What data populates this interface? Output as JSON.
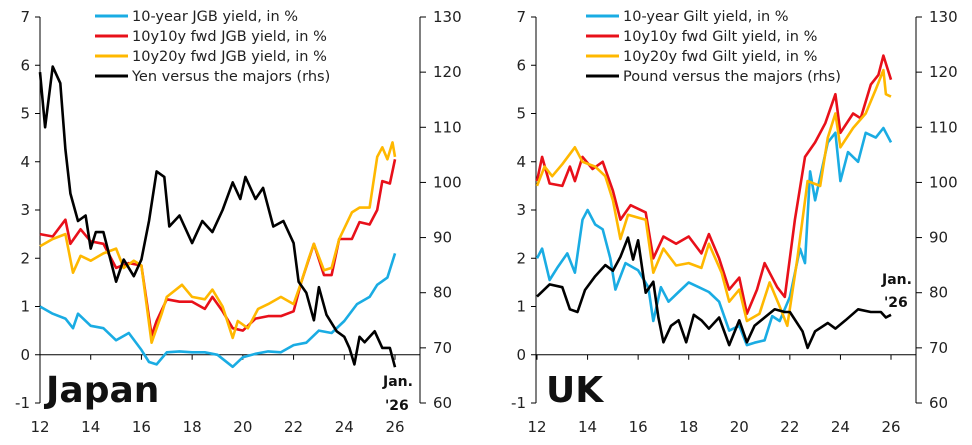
{
  "chart_data": [
    {
      "type": "line",
      "title": "Japan",
      "annotation": [
        "Jan.",
        "'26"
      ],
      "x_ticks": [
        "12",
        "14",
        "16",
        "18",
        "20",
        "22",
        "24",
        "26"
      ],
      "xlim": [
        2012,
        2026
      ],
      "ylim_left": [
        -1,
        7
      ],
      "ylim_right": [
        60,
        130
      ],
      "y_ticks_left": [
        "-1",
        "0",
        "1",
        "2",
        "3",
        "4",
        "5",
        "6",
        "7"
      ],
      "y_ticks_right": [
        "60",
        "70",
        "80",
        "90",
        "100",
        "110",
        "120",
        "130"
      ],
      "legend_placement": "top",
      "series": [
        {
          "name": "10-year JGB yield, in %",
          "color": "#1AACE3",
          "axis": "left",
          "x": [
            2012,
            2012.5,
            2013,
            2013.3,
            2013.5,
            2014,
            2014.5,
            2015,
            2015.5,
            2016,
            2016.3,
            2016.6,
            2017,
            2017.5,
            2018,
            2018.5,
            2019,
            2019.6,
            2020,
            2020.5,
            2021,
            2021.5,
            2022,
            2022.5,
            2023,
            2023.5,
            2024,
            2024.5,
            2025,
            2025.3,
            2025.7,
            2026
          ],
          "y": [
            1.0,
            0.85,
            0.75,
            0.55,
            0.85,
            0.6,
            0.55,
            0.3,
            0.45,
            0.1,
            -0.15,
            -0.2,
            0.05,
            0.07,
            0.05,
            0.05,
            0.0,
            -0.25,
            -0.05,
            0.02,
            0.07,
            0.05,
            0.2,
            0.25,
            0.5,
            0.45,
            0.7,
            1.05,
            1.2,
            1.45,
            1.6,
            2.1
          ]
        },
        {
          "name": "10y10y fwd JGB yield, in %",
          "color": "#E8101A",
          "axis": "left",
          "x": [
            2012,
            2012.5,
            2013,
            2013.2,
            2013.6,
            2014,
            2014.5,
            2015,
            2015.5,
            2016,
            2016.4,
            2016.6,
            2017,
            2017.5,
            2018,
            2018.5,
            2018.8,
            2019.2,
            2019.6,
            2020,
            2020.5,
            2021,
            2021.5,
            2022,
            2022.3,
            2022.8,
            2023.2,
            2023.5,
            2023.8,
            2024.3,
            2024.6,
            2025,
            2025.3,
            2025.5,
            2025.8,
            2026
          ],
          "y": [
            2.5,
            2.45,
            2.8,
            2.3,
            2.6,
            2.35,
            2.3,
            1.8,
            1.9,
            1.85,
            0.4,
            0.7,
            1.15,
            1.1,
            1.1,
            0.95,
            1.2,
            0.9,
            0.55,
            0.5,
            0.75,
            0.8,
            0.8,
            0.9,
            1.5,
            2.3,
            1.65,
            1.65,
            2.4,
            2.4,
            2.75,
            2.7,
            3.0,
            3.6,
            3.55,
            4.05
          ]
        },
        {
          "name": "10y20y fwd JGB yield, in %",
          "color": "#FFB800",
          "axis": "left",
          "x": [
            2012,
            2012.5,
            2013,
            2013.3,
            2013.6,
            2014,
            2014.5,
            2015,
            2015.3,
            2015.7,
            2016,
            2016.4,
            2016.8,
            2017,
            2017.6,
            2018,
            2018.5,
            2018.8,
            2019.2,
            2019.6,
            2019.8,
            2020.2,
            2020.6,
            2021,
            2021.5,
            2022,
            2022.3,
            2022.6,
            2022.8,
            2023.2,
            2023.5,
            2023.8,
            2024.3,
            2024.6,
            2025,
            2025.3,
            2025.5,
            2025.7,
            2025.9,
            2026
          ],
          "y": [
            2.25,
            2.4,
            2.5,
            1.7,
            2.05,
            1.95,
            2.1,
            2.2,
            1.8,
            1.95,
            1.85,
            0.25,
            0.85,
            1.2,
            1.45,
            1.2,
            1.15,
            1.35,
            1.0,
            0.35,
            0.7,
            0.55,
            0.95,
            1.05,
            1.2,
            1.05,
            1.5,
            2.0,
            2.3,
            1.75,
            1.8,
            2.4,
            2.95,
            3.05,
            3.05,
            4.1,
            4.3,
            4.05,
            4.4,
            4.1
          ]
        },
        {
          "name": "Yen versus the majors (rhs)",
          "color": "#000000",
          "axis": "right",
          "x": [
            2012,
            2012.2,
            2012.5,
            2012.8,
            2013,
            2013.2,
            2013.5,
            2013.8,
            2014,
            2014.2,
            2014.5,
            2015,
            2015.3,
            2015.7,
            2016,
            2016.3,
            2016.6,
            2016.9,
            2017.1,
            2017.5,
            2018,
            2018.4,
            2018.8,
            2019.2,
            2019.6,
            2019.9,
            2020.1,
            2020.5,
            2020.8,
            2021.2,
            2021.6,
            2022,
            2022.2,
            2022.5,
            2022.8,
            2023,
            2023.3,
            2023.7,
            2024,
            2024.2,
            2024.4,
            2024.6,
            2024.8,
            2025.2,
            2025.5,
            2025.8,
            2026
          ],
          "y": [
            120,
            110,
            121,
            118,
            106,
            98,
            93,
            94,
            88,
            91,
            91,
            82,
            86,
            83,
            86,
            93,
            102,
            101,
            92,
            94,
            89,
            93,
            91,
            95,
            100,
            97,
            101,
            97,
            99,
            92,
            93,
            89,
            82,
            80,
            75,
            81,
            76,
            73,
            72,
            70,
            67,
            72,
            71,
            73,
            70,
            70,
            66.5
          ]
        }
      ]
    },
    {
      "type": "line",
      "title": "UK",
      "annotation": [
        "Jan.",
        "'26"
      ],
      "x_ticks": [
        "12",
        "14",
        "16",
        "18",
        "20",
        "22",
        "24",
        "26"
      ],
      "xlim": [
        2012,
        2026
      ],
      "ylim_left": [
        -1,
        7
      ],
      "ylim_right": [
        60,
        130
      ],
      "y_ticks_left": [
        "-1",
        "0",
        "1",
        "2",
        "3",
        "4",
        "5",
        "6",
        "7"
      ],
      "y_ticks_right": [
        "60",
        "70",
        "80",
        "90",
        "100",
        "110",
        "120",
        "130"
      ],
      "legend_placement": "top",
      "series": [
        {
          "name": "10-year Gilt yield, in %",
          "color": "#1AACE3",
          "axis": "left",
          "x": [
            2012,
            2012.2,
            2012.5,
            2012.8,
            2013.2,
            2013.5,
            2013.8,
            2014,
            2014.3,
            2014.6,
            2014.9,
            2015.1,
            2015.5,
            2016,
            2016.4,
            2016.6,
            2016.9,
            2017.2,
            2017.6,
            2018,
            2018.4,
            2018.8,
            2019.2,
            2019.6,
            2020,
            2020.3,
            2020.6,
            2021,
            2021.3,
            2021.6,
            2022,
            2022.4,
            2022.6,
            2022.8,
            2023,
            2023.5,
            2023.8,
            2024,
            2024.3,
            2024.7,
            2025,
            2025.4,
            2025.7,
            2026
          ],
          "y": [
            2.0,
            2.2,
            1.55,
            1.8,
            2.1,
            1.7,
            2.8,
            3.0,
            2.7,
            2.6,
            2.0,
            1.35,
            1.9,
            1.75,
            1.4,
            0.7,
            1.4,
            1.1,
            1.3,
            1.5,
            1.4,
            1.3,
            1.1,
            0.5,
            0.6,
            0.2,
            0.25,
            0.3,
            0.8,
            0.7,
            1.2,
            2.2,
            1.9,
            3.8,
            3.2,
            4.4,
            4.6,
            3.6,
            4.2,
            4.0,
            4.6,
            4.5,
            4.7,
            4.4
          ]
        },
        {
          "name": "10y10y fwd Gilt yield, in %",
          "color": "#E8101A",
          "axis": "left",
          "x": [
            2012,
            2012.2,
            2012.5,
            2013,
            2013.3,
            2013.5,
            2013.8,
            2014.2,
            2014.6,
            2015,
            2015.3,
            2015.7,
            2016.3,
            2016.6,
            2017,
            2017.5,
            2018,
            2018.5,
            2018.8,
            2019.2,
            2019.6,
            2020,
            2020.3,
            2020.7,
            2021,
            2021.5,
            2021.8,
            2022.2,
            2022.6,
            2023,
            2023.4,
            2023.8,
            2024,
            2024.5,
            2024.8,
            2025.2,
            2025.5,
            2025.7,
            2026
          ],
          "y": [
            3.6,
            4.1,
            3.55,
            3.5,
            3.9,
            3.6,
            4.1,
            3.85,
            4.0,
            3.4,
            2.8,
            3.1,
            2.95,
            2.0,
            2.45,
            2.3,
            2.45,
            2.1,
            2.5,
            2.0,
            1.35,
            1.6,
            0.85,
            1.35,
            1.9,
            1.4,
            1.2,
            2.8,
            4.1,
            4.4,
            4.8,
            5.4,
            4.6,
            5.0,
            4.9,
            5.6,
            5.8,
            6.2,
            5.7
          ]
        },
        {
          "name": "10y20y fwd Gilt yield, in %",
          "color": "#FFB800",
          "axis": "left",
          "x": [
            2012,
            2012.3,
            2012.6,
            2013,
            2013.5,
            2013.8,
            2014.3,
            2014.7,
            2015,
            2015.3,
            2015.6,
            2016.3,
            2016.6,
            2017,
            2017.5,
            2018,
            2018.5,
            2018.8,
            2019.3,
            2019.6,
            2020,
            2020.3,
            2020.8,
            2021.2,
            2021.6,
            2021.9,
            2022.3,
            2022.7,
            2023.2,
            2023.5,
            2023.8,
            2024,
            2024.5,
            2025,
            2025.4,
            2025.7,
            2025.8,
            2026
          ],
          "y": [
            3.5,
            3.9,
            3.7,
            3.95,
            4.3,
            4.0,
            3.9,
            3.7,
            3.2,
            2.4,
            2.9,
            2.8,
            1.7,
            2.2,
            1.85,
            1.9,
            1.8,
            2.3,
            1.7,
            1.1,
            1.35,
            0.7,
            0.85,
            1.5,
            1.0,
            0.6,
            2.0,
            3.6,
            3.5,
            4.5,
            5.0,
            4.3,
            4.7,
            5.0,
            5.5,
            5.9,
            5.4,
            5.35
          ]
        },
        {
          "name": "Pound versus the majors (rhs)",
          "color": "#000000",
          "axis": "right",
          "x": [
            2012,
            2012.5,
            2013,
            2013.3,
            2013.6,
            2013.9,
            2014.3,
            2014.7,
            2015,
            2015.3,
            2015.6,
            2015.8,
            2016,
            2016.3,
            2016.6,
            2016.8,
            2017,
            2017.3,
            2017.6,
            2017.9,
            2018.2,
            2018.5,
            2018.8,
            2019.2,
            2019.6,
            2020,
            2020.3,
            2020.6,
            2021,
            2021.4,
            2021.8,
            2022,
            2022.5,
            2022.7,
            2023,
            2023.5,
            2023.8,
            2024.2,
            2024.7,
            2025.2,
            2025.6,
            2025.8,
            2026
          ],
          "y": [
            79.3,
            81.5,
            81,
            77,
            76.5,
            80.5,
            83,
            85,
            84,
            86.5,
            90,
            86,
            89.5,
            80,
            82,
            75.5,
            71,
            74,
            75,
            71,
            76,
            75,
            73.5,
            75.5,
            70.5,
            75,
            71,
            74,
            75.5,
            77,
            76.5,
            76.5,
            73,
            70,
            73,
            74.5,
            73.5,
            75,
            77,
            76.5,
            76.5,
            75.5,
            76
          ]
        }
      ]
    }
  ]
}
